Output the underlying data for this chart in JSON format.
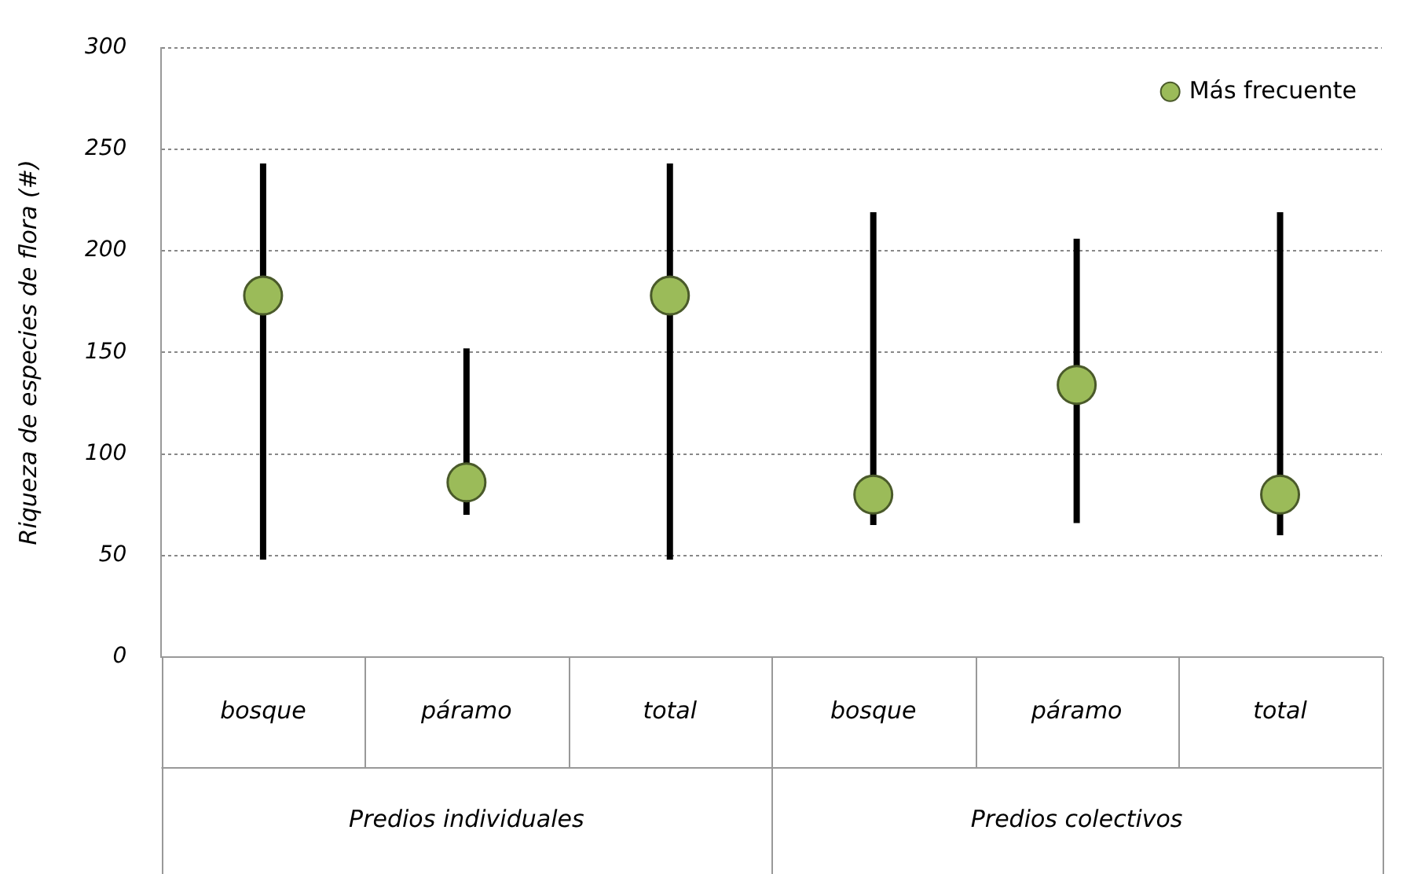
{
  "chart_data": {
    "type": "scatter",
    "ylabel": "Riqueza de especies de flora (#)",
    "categories": [
      "bosque",
      "páramo",
      "total",
      "bosque",
      "páramo",
      "total"
    ],
    "series": [
      {
        "name": "Más frecuente",
        "color": "#9bbb59",
        "values": [
          178,
          86,
          178,
          80,
          134,
          80
        ],
        "errors": [
          [
            48,
            243
          ],
          [
            70,
            152
          ],
          [
            48,
            243
          ],
          [
            65,
            219
          ],
          [
            66,
            206
          ],
          [
            60,
            219
          ]
        ]
      }
    ],
    "ylim": [
      0,
      300
    ],
    "yticks": [
      0,
      50,
      100,
      150,
      200,
      250,
      300
    ],
    "grid": "y",
    "legend": "top right",
    "marker": "circle",
    "annotations": [
      "Predios individuales",
      "Predios colectivos"
    ]
  }
}
